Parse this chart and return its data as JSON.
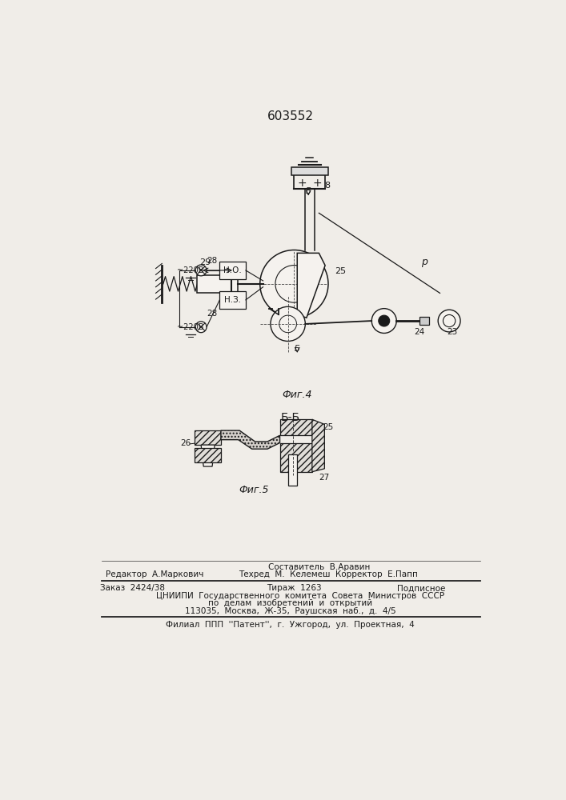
{
  "patent_number": "603552",
  "bg_color": "#f0ede8",
  "fig4_label": "Фиг.4",
  "fig5_label": "Фиг.5",
  "section_label": "Б-Б",
  "footer": {
    "sestavitel": "Составитель  В.Аравин",
    "redaktor": "Редактор  А.Маркович",
    "tehred": "Техред  М.  Келемеш  Корректор  Е.Папп",
    "zakaz": "Заказ  2424/38",
    "tirazh": "Тираж  1263",
    "podpisnoe": "Подписное",
    "tsniip": "ЦНИИПИ  Государственного  комитета  Совета  Министров  СССР",
    "po_delam": "по  делам  изобретений  и  открытий",
    "address": "113035,  Москва,  Ж-35,  Раушская  наб.,  д.  4/5",
    "filial": "Филиал  ППП  ''Патент'',  г.  Ужгород,  ул.  Проектная,  4"
  }
}
